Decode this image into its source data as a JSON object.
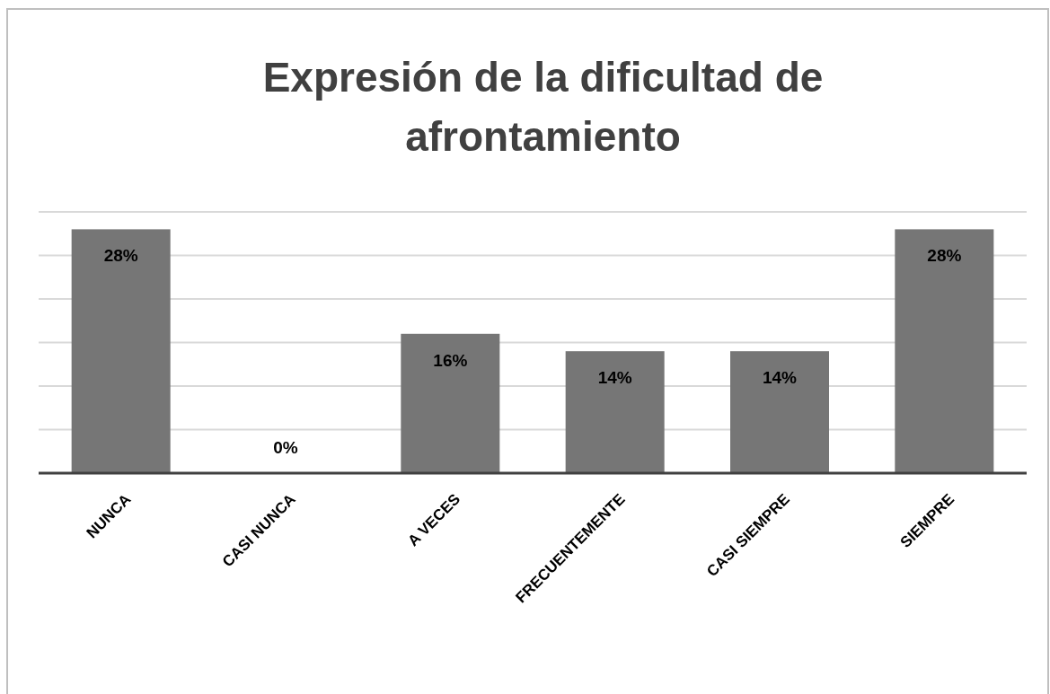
{
  "chart_data": {
    "type": "bar",
    "title": "Expresión de la dificultad de afrontamiento",
    "categories": [
      "NUNCA",
      "CASI NUNCA",
      "A VECES",
      "FRECUENTEMENTE",
      "CASI SIEMPRE",
      "SIEMPRE"
    ],
    "values": [
      28,
      0,
      16,
      14,
      14,
      28
    ],
    "value_labels": [
      "28%",
      "0%",
      "16%",
      "14%",
      "14%",
      "28%"
    ],
    "color": "#767676",
    "ylim": [
      0,
      30
    ],
    "yticks": [
      {
        "value": 0,
        "label": null
      },
      {
        "value": 5,
        "label": null
      },
      {
        "value": 10,
        "label": null
      },
      {
        "value": 15,
        "label": null
      },
      {
        "value": 20,
        "label": null
      },
      {
        "value": 25,
        "label": null
      },
      {
        "value": 30,
        "label": null
      }
    ],
    "grid": true
  }
}
